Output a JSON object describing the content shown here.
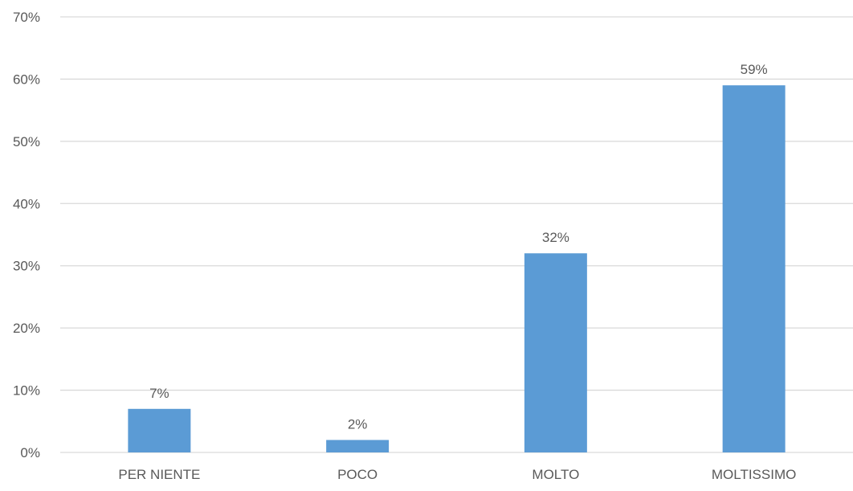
{
  "chart_data": {
    "type": "bar",
    "categories": [
      "PER NIENTE",
      "POCO",
      "MOLTO",
      "MOLTISSIMO"
    ],
    "values": [
      7,
      2,
      32,
      59
    ],
    "data_labels": [
      "7%",
      "2%",
      "32%",
      "59%"
    ],
    "title": "",
    "xlabel": "",
    "ylabel": "",
    "ylim": [
      0,
      70
    ],
    "y_ticks": [
      0,
      10,
      20,
      30,
      40,
      50,
      60,
      70
    ],
    "y_tick_labels": [
      "0%",
      "10%",
      "20%",
      "30%",
      "40%",
      "50%",
      "60%",
      "70%"
    ],
    "grid": true,
    "legend": "none",
    "bar_color": "#5b9bd5"
  }
}
